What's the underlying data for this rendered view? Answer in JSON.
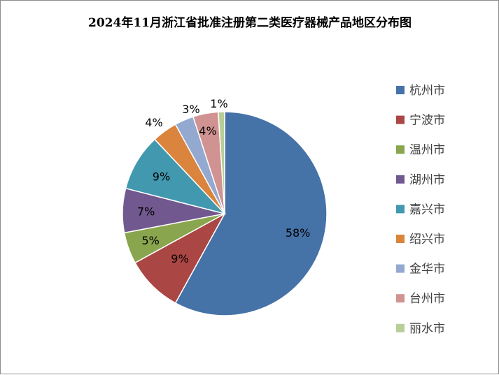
{
  "chart_data": {
    "type": "pie",
    "title": "2024年11月浙江省批准注册第二类医疗器械产品地区分布图",
    "categories": [
      "杭州市",
      "宁波市",
      "温州市",
      "湖州市",
      "嘉兴市",
      "绍兴市",
      "金华市",
      "台州市",
      "丽水市"
    ],
    "values": [
      58,
      9,
      5,
      7,
      9,
      4,
      3,
      4,
      1
    ],
    "labels": [
      "58%",
      "9%",
      "5%",
      "7%",
      "9%",
      "4%",
      "3%",
      "4%",
      "1%"
    ],
    "colors": [
      "#4572A7",
      "#AA4643",
      "#89A54E",
      "#71588F",
      "#4198AF",
      "#DB843D",
      "#93A9CF",
      "#D19392",
      "#B9CD96"
    ],
    "legend_position": "right",
    "start_angle": "12 o'clock",
    "direction": "clockwise"
  }
}
